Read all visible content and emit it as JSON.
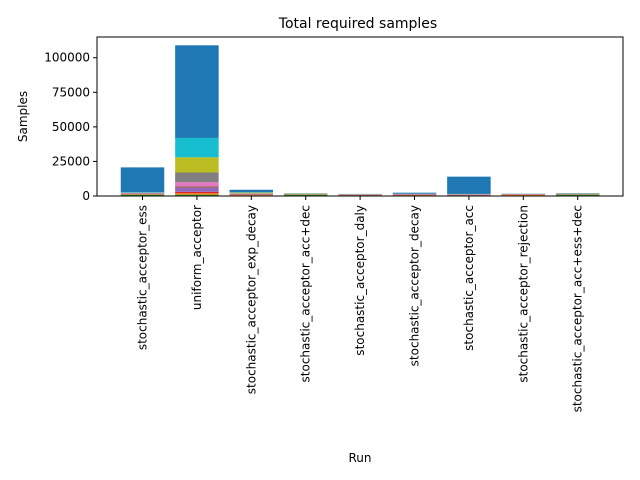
{
  "chart_data": {
    "type": "bar",
    "stacked": true,
    "title": "Total required samples",
    "xlabel": "Run",
    "ylabel": "Samples",
    "ylim": [
      0,
      115000
    ],
    "yticks": [
      0,
      25000,
      50000,
      75000,
      100000
    ],
    "ytick_labels": [
      "0",
      "25000",
      "50000",
      "75000",
      "100000"
    ],
    "grid": false,
    "legend": "none",
    "colors": [
      "#2ca02c",
      "#ff7f0e",
      "#d62728",
      "#9467bd",
      "#8c564b",
      "#e377c2",
      "#7f7f7f",
      "#bcbd22",
      "#17becf",
      "#1f77b4"
    ],
    "categories": [
      "stochastic_acceptor_ess",
      "uniform_acceptor",
      "stochastic_acceptor_exp_decay",
      "stochastic_acceptor_acc+dec",
      "stochastic_acceptor_daly",
      "stochastic_acceptor_decay",
      "stochastic_acceptor_acc",
      "stochastic_acceptor_rejection",
      "stochastic_acceptor_acc+ess+dec"
    ],
    "stacks": [
      [
        1000,
        300,
        300,
        200,
        200,
        200,
        100,
        100,
        300,
        18000
      ],
      [
        1000,
        1000,
        1000,
        3000,
        1000,
        3000,
        7000,
        11000,
        14000,
        67000
      ],
      [
        400,
        300,
        300,
        200,
        200,
        300,
        300,
        500,
        300,
        1700
      ],
      [
        1000,
        200,
        100,
        100,
        100,
        100,
        100,
        100,
        100,
        100
      ],
      [
        200,
        300,
        300,
        100,
        100,
        100,
        100,
        100,
        100,
        100
      ],
      [
        300,
        300,
        300,
        200,
        200,
        100,
        100,
        100,
        100,
        700
      ],
      [
        200,
        200,
        200,
        200,
        200,
        200,
        100,
        100,
        100,
        12500
      ],
      [
        200,
        600,
        200,
        100,
        100,
        100,
        100,
        100,
        100,
        100
      ],
      [
        1000,
        200,
        100,
        100,
        100,
        100,
        100,
        100,
        100,
        200
      ]
    ]
  }
}
